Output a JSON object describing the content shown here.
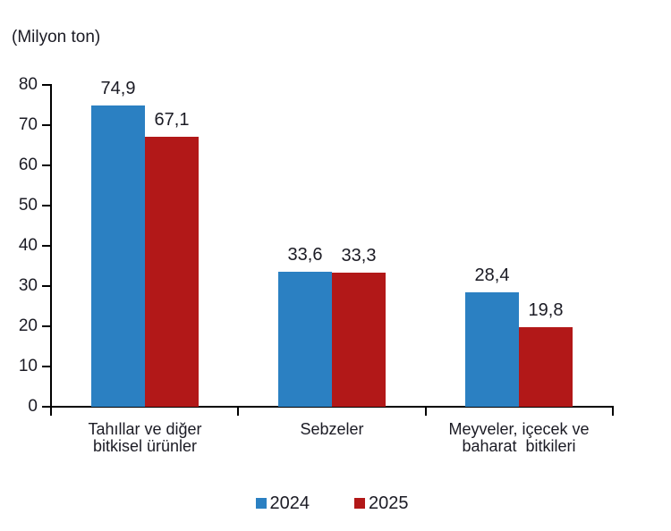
{
  "chart_data": {
    "type": "bar",
    "title": "(Milyon ton)",
    "categories": [
      "Tahıllar ve diğer\nbitkisel ürünler",
      "Sebzeler",
      "Meyveler, içecek ve\nbaharat  bitkileri"
    ],
    "series": [
      {
        "name": "2024",
        "color": "#2B80C2",
        "values": [
          74.9,
          33.6,
          28.4
        ],
        "labels": [
          "74,9",
          "33,6",
          "28,4"
        ]
      },
      {
        "name": "2025",
        "color": "#B21818",
        "values": [
          67.1,
          33.3,
          19.8
        ],
        "labels": [
          "67,1",
          "33,3",
          "19,8"
        ]
      }
    ],
    "yticks": [
      "0",
      "10",
      "20",
      "30",
      "40",
      "50",
      "60",
      "70",
      "80"
    ],
    "ylim": [
      0,
      80
    ],
    "ytick_step": 10,
    "grid": false,
    "legend_position": "bottom",
    "legend_labels": [
      "2024",
      "2025"
    ],
    "axis_color": "#000000",
    "text_color": "#1b1b24",
    "background": "#ffffff"
  }
}
